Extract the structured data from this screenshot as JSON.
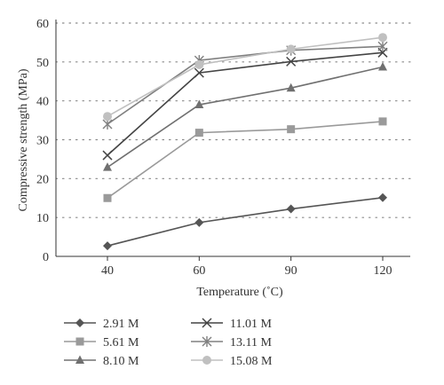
{
  "chart_data": {
    "type": "line",
    "title": "",
    "xlabel": "Temperature (˚C)",
    "ylabel": "Compressive strength (MPa)",
    "categories": [
      "40",
      "60",
      "90",
      "120"
    ],
    "ylim": [
      0,
      60
    ],
    "yticks": [
      "0",
      "10",
      "20",
      "30",
      "40",
      "50",
      "60"
    ],
    "grid": "horizontal dotted",
    "legend_position": "bottom",
    "series": [
      {
        "name": "2.91 M",
        "marker": "diamond",
        "color": "#555555",
        "values": [
          2.7,
          8.7,
          12.2,
          15.1
        ]
      },
      {
        "name": "5.61 M",
        "marker": "square",
        "color": "#9a9a9a",
        "values": [
          15.0,
          31.8,
          32.7,
          34.7
        ]
      },
      {
        "name": "8.10 M",
        "marker": "triangle",
        "color": "#707070",
        "values": [
          22.9,
          39.0,
          43.3,
          48.7
        ]
      },
      {
        "name": "11.01 M",
        "marker": "x",
        "color": "#444444",
        "values": [
          26.0,
          47.2,
          50.1,
          52.4
        ]
      },
      {
        "name": "13.11 M",
        "marker": "asterisk",
        "color": "#808080",
        "values": [
          34.0,
          50.4,
          53.0,
          54.0
        ]
      },
      {
        "name": "15.08 M",
        "marker": "circle",
        "color": "#c0c0c0",
        "values": [
          36.0,
          49.3,
          53.3,
          56.3
        ]
      }
    ]
  }
}
